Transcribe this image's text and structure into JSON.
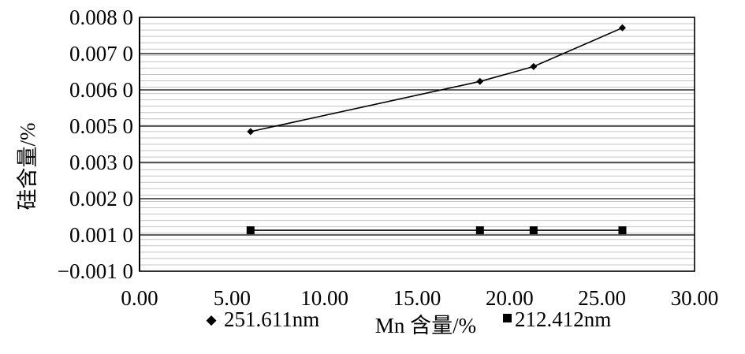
{
  "chart_data": {
    "type": "line",
    "xlabel": "Mn 含量/%",
    "ylabel": "硅含量/%",
    "xlim": [
      0,
      30
    ],
    "ylim": [
      0,
      8
    ],
    "x_ticks": [
      "0.00",
      "5.00",
      "10.00",
      "15.00",
      "20.00",
      "25.00",
      "30.00"
    ],
    "y_ticks": [
      "0.008 0",
      "0.007 0",
      "0.006 0",
      "0.005 0",
      "0.003 0",
      "0.002 0",
      "0.001 0",
      "−0.001 0"
    ],
    "gridlines": "horizontal",
    "legend_position": "bottom",
    "series": [
      {
        "name": "251.611nm",
        "marker": "diamond",
        "x": [
          6.0,
          18.4,
          21.3,
          26.1
        ],
        "y": [
          4.4,
          5.98,
          6.45,
          7.67
        ]
      },
      {
        "name": "212.412nm",
        "marker": "square",
        "x": [
          6.0,
          18.4,
          21.3,
          26.1
        ],
        "y": [
          1.29,
          1.29,
          1.29,
          1.29
        ]
      }
    ]
  }
}
